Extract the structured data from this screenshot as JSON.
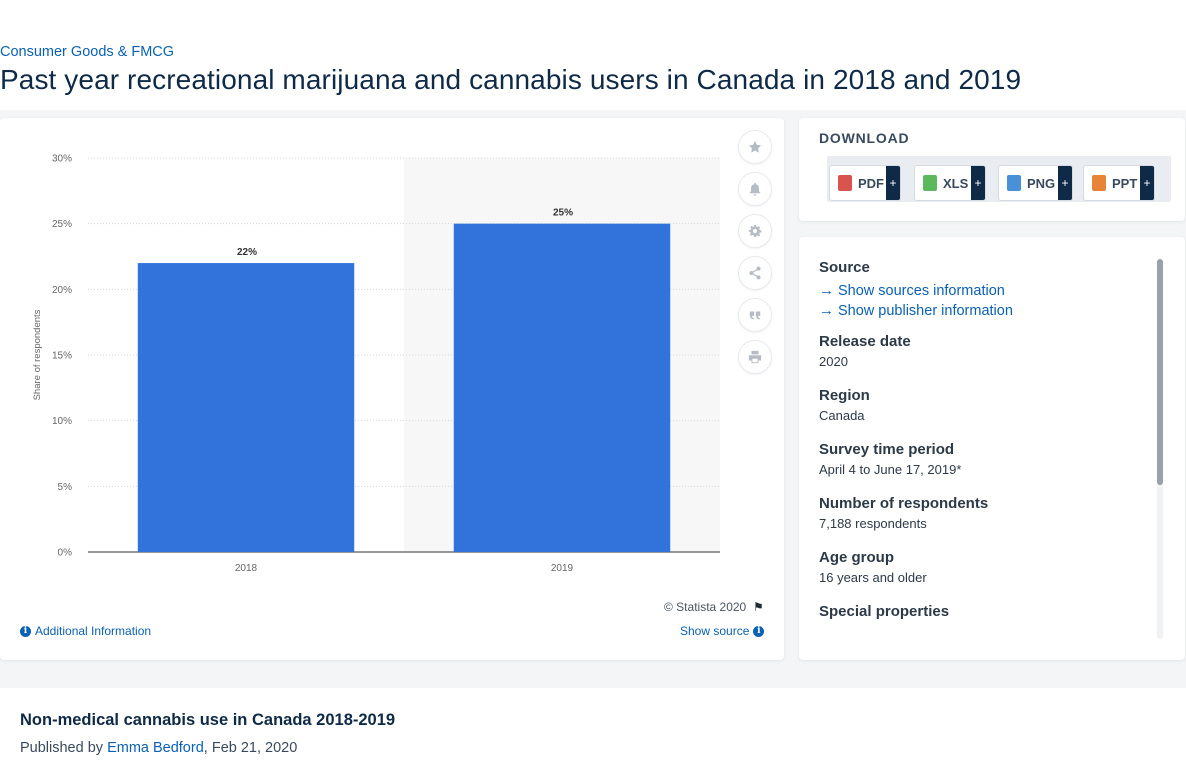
{
  "breadcrumb": "Consumer Goods & FMCG",
  "title": "Past year recreational marijuana and cannabis users in Canada in 2018 and 2019",
  "chart_data": {
    "type": "bar",
    "categories": [
      "2018",
      "2019"
    ],
    "values": [
      22,
      25
    ],
    "value_labels": [
      "22%",
      "25%"
    ],
    "ylabel": "Share of respondents",
    "ylim": [
      0,
      30
    ],
    "yticks": [
      "0%",
      "5%",
      "10%",
      "15%",
      "20%",
      "25%",
      "30%"
    ],
    "bar_color": "#3273db",
    "grid": true
  },
  "toolbar": {
    "icons": [
      "star-icon",
      "bell-icon",
      "gear-icon",
      "share-icon",
      "quote-icon",
      "print-icon"
    ]
  },
  "footer": {
    "copyright": "© Statista 2020",
    "additional_info": "Additional Information",
    "show_source": "Show source"
  },
  "download": {
    "title": "DOWNLOAD",
    "buttons": [
      {
        "label": "PDF",
        "color": "#d9534f"
      },
      {
        "label": "XLS",
        "color": "#5cb85c"
      },
      {
        "label": "PNG",
        "color": "#4a90d9"
      },
      {
        "label": "PPT",
        "color": "#e8833a"
      }
    ],
    "plus": "+"
  },
  "info": {
    "source_heading": "Source",
    "show_sources": "Show sources information",
    "show_publisher": "Show publisher information",
    "fields": [
      {
        "label": "Release date",
        "value": "2020"
      },
      {
        "label": "Region",
        "value": "Canada"
      },
      {
        "label": "Survey time period",
        "value": "April 4 to June 17, 2019*"
      },
      {
        "label": "Number of respondents",
        "value": "7,188 respondents"
      },
      {
        "label": "Age group",
        "value": "16 years and older"
      },
      {
        "label": "Special properties",
        "value": ""
      }
    ]
  },
  "bottom": {
    "title": "Non-medical cannabis use in Canada 2018-2019",
    "published_prefix": "Published by ",
    "author": "Emma Bedford",
    "date_suffix": ", Feb 21, 2020"
  }
}
